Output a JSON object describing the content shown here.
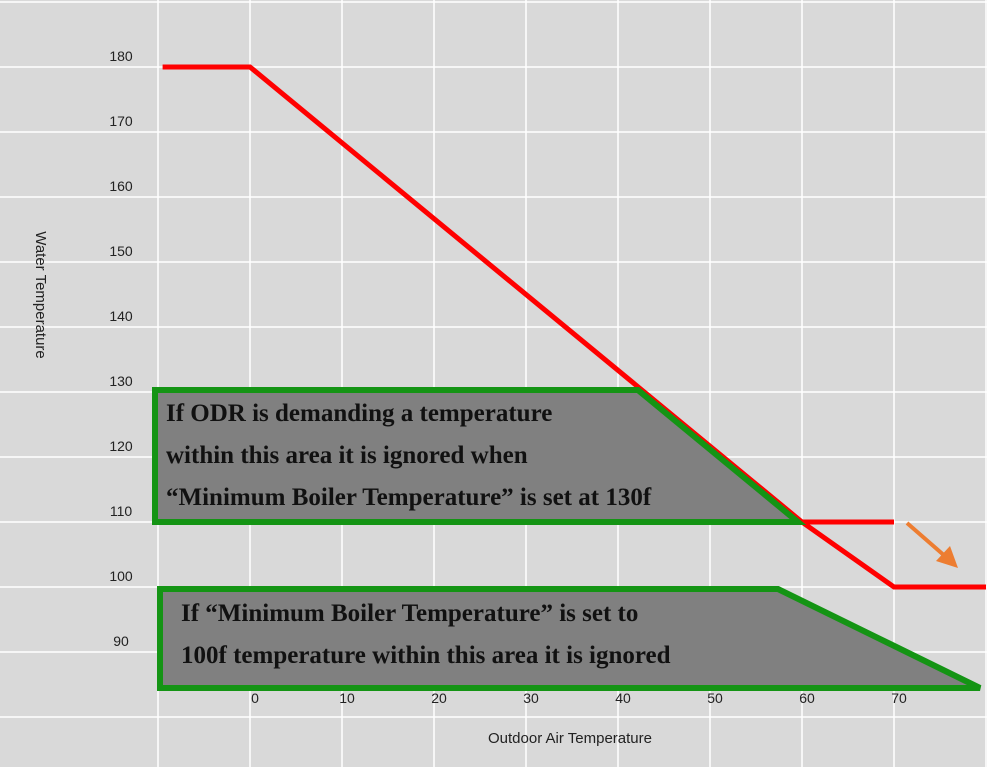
{
  "chart_data": {
    "type": "line",
    "title": "",
    "xlabel": "Outdoor Air Temperature",
    "ylabel": "Water Temperature",
    "x_ticks": [
      "0",
      "10",
      "20",
      "30",
      "40",
      "50",
      "60",
      "70"
    ],
    "y_ticks": [
      "180",
      "170",
      "160",
      "150",
      "140",
      "130",
      "120",
      "110",
      "100",
      "90"
    ],
    "xlim": [
      -10,
      80
    ],
    "ylim": [
      82,
      190
    ],
    "grid": true,
    "colors": {
      "curve": "#ff0000",
      "annotation_border": "#149414",
      "annotation_fill": "#808080",
      "arrow": "#ed7d31",
      "background": "#d9d9d9",
      "grid": "#ffffff"
    },
    "series": [
      {
        "points": [
          [
            -9.5,
            180
          ],
          [
            0,
            180
          ],
          [
            60,
            110
          ],
          [
            70,
            100
          ],
          [
            80,
            100
          ]
        ]
      },
      {
        "points": [
          [
            60,
            110
          ],
          [
            70,
            110
          ]
        ]
      }
    ],
    "annotations": [
      {
        "text": [
          "If ODR is demanding a temperature",
          "within this area it is ignored when",
          " “Minimum Boiler Temperature” is set at 130f"
        ]
      },
      {
        "text": [
          "If “Minimum Boiler Temperature” is set to",
          "100f  temperature within this area it is ignored"
        ]
      }
    ]
  }
}
